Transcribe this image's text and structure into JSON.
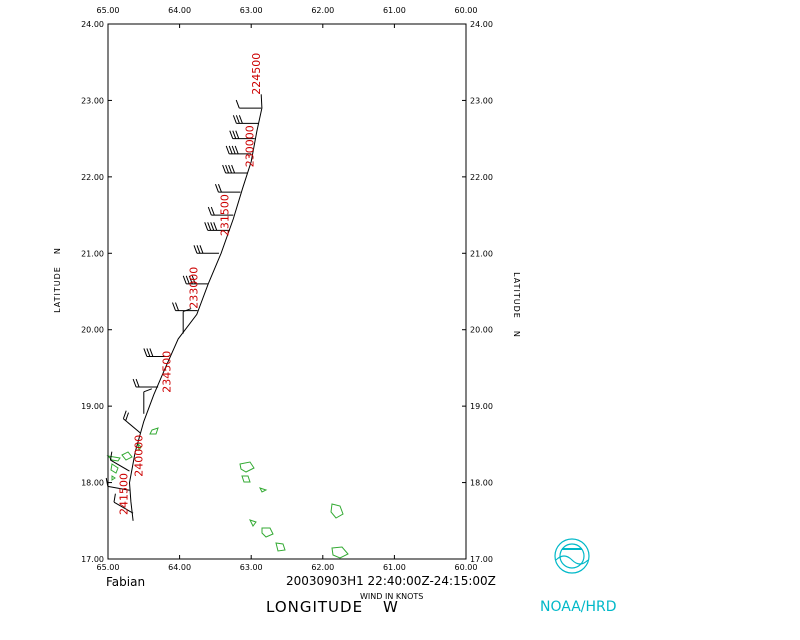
{
  "storm_name": "Fabian",
  "time_range": "20030903H1 22:40:00Z-24:15:00Z",
  "wind_units": "WIND IN KNOTS",
  "x_axis_title": "LONGITUDE",
  "x_axis_dir": "W",
  "y_axis_title": "LATITUDE",
  "y_axis_dir": "N",
  "credit": "NOAA/HRD",
  "colors": {
    "track": "#000000",
    "time_labels": "#cc0000",
    "coast": "#33aa33",
    "logo": "#00b8c8"
  },
  "chart_data": {
    "type": "map",
    "lon_range": [
      65.0,
      60.0
    ],
    "lat_range": [
      17.0,
      24.0
    ],
    "lon_ticks": [
      "65.00",
      "64.00",
      "63.00",
      "62.00",
      "61.00",
      "60.00"
    ],
    "lat_ticks": [
      "17.00",
      "18.00",
      "19.00",
      "20.00",
      "21.00",
      "22.00",
      "23.00",
      "24.00"
    ],
    "track": [
      {
        "lon": 64.65,
        "lat": 17.5
      },
      {
        "lon": 64.68,
        "lat": 17.75
      },
      {
        "lon": 64.7,
        "lat": 18.0
      },
      {
        "lon": 64.62,
        "lat": 18.4
      },
      {
        "lon": 64.5,
        "lat": 18.8
      },
      {
        "lon": 64.36,
        "lat": 19.15
      },
      {
        "lon": 64.2,
        "lat": 19.5
      },
      {
        "lon": 64.02,
        "lat": 19.88
      },
      {
        "lon": 63.76,
        "lat": 20.2
      },
      {
        "lon": 63.6,
        "lat": 20.6
      },
      {
        "lon": 63.42,
        "lat": 21.0
      },
      {
        "lon": 63.25,
        "lat": 21.45
      },
      {
        "lon": 63.12,
        "lat": 21.85
      },
      {
        "lon": 63.0,
        "lat": 22.2
      },
      {
        "lon": 62.92,
        "lat": 22.6
      },
      {
        "lon": 62.85,
        "lat": 22.9
      },
      {
        "lon": 62.86,
        "lat": 23.08
      }
    ],
    "wind_barbs": [
      {
        "lon": 64.65,
        "lat": 17.6,
        "dir": 300,
        "speed": 10
      },
      {
        "lon": 64.7,
        "lat": 17.9,
        "dir": 280,
        "speed": 10
      },
      {
        "lon": 64.7,
        "lat": 18.15,
        "dir": 300,
        "speed": 10
      },
      {
        "lon": 64.55,
        "lat": 18.65,
        "dir": 310,
        "speed": 20
      },
      {
        "lon": 64.5,
        "lat": 18.9,
        "dir": 0,
        "speed": 10
      },
      {
        "lon": 64.3,
        "lat": 19.25,
        "dir": 270,
        "speed": 20
      },
      {
        "lon": 64.15,
        "lat": 19.65,
        "dir": 270,
        "speed": 30
      },
      {
        "lon": 63.95,
        "lat": 19.95,
        "dir": 0,
        "speed": 10
      },
      {
        "lon": 63.75,
        "lat": 20.25,
        "dir": 270,
        "speed": 20
      },
      {
        "lon": 63.6,
        "lat": 20.6,
        "dir": 270,
        "speed": 40
      },
      {
        "lon": 63.45,
        "lat": 21.0,
        "dir": 270,
        "speed": 30
      },
      {
        "lon": 63.3,
        "lat": 21.3,
        "dir": 270,
        "speed": 40
      },
      {
        "lon": 63.25,
        "lat": 21.5,
        "dir": 270,
        "speed": 20
      },
      {
        "lon": 63.15,
        "lat": 21.8,
        "dir": 270,
        "speed": 20
      },
      {
        "lon": 63.05,
        "lat": 22.05,
        "dir": 270,
        "speed": 40
      },
      {
        "lon": 63.0,
        "lat": 22.3,
        "dir": 270,
        "speed": 40
      },
      {
        "lon": 62.95,
        "lat": 22.5,
        "dir": 270,
        "speed": 30
      },
      {
        "lon": 62.9,
        "lat": 22.7,
        "dir": 270,
        "speed": 30
      },
      {
        "lon": 62.86,
        "lat": 22.9,
        "dir": 270,
        "speed": 10
      }
    ],
    "time_labels": [
      {
        "text": "241500",
        "lon": 64.73,
        "lat": 17.85
      },
      {
        "text": "240000",
        "lon": 64.52,
        "lat": 18.35
      },
      {
        "text": "234500",
        "lon": 64.13,
        "lat": 19.45
      },
      {
        "text": "233000",
        "lon": 63.75,
        "lat": 20.55
      },
      {
        "text": "231500",
        "lon": 63.32,
        "lat": 21.5
      },
      {
        "text": "230000",
        "lon": 62.97,
        "lat": 22.4
      },
      {
        "text": "224500",
        "lon": 62.88,
        "lat": 23.35
      }
    ]
  }
}
